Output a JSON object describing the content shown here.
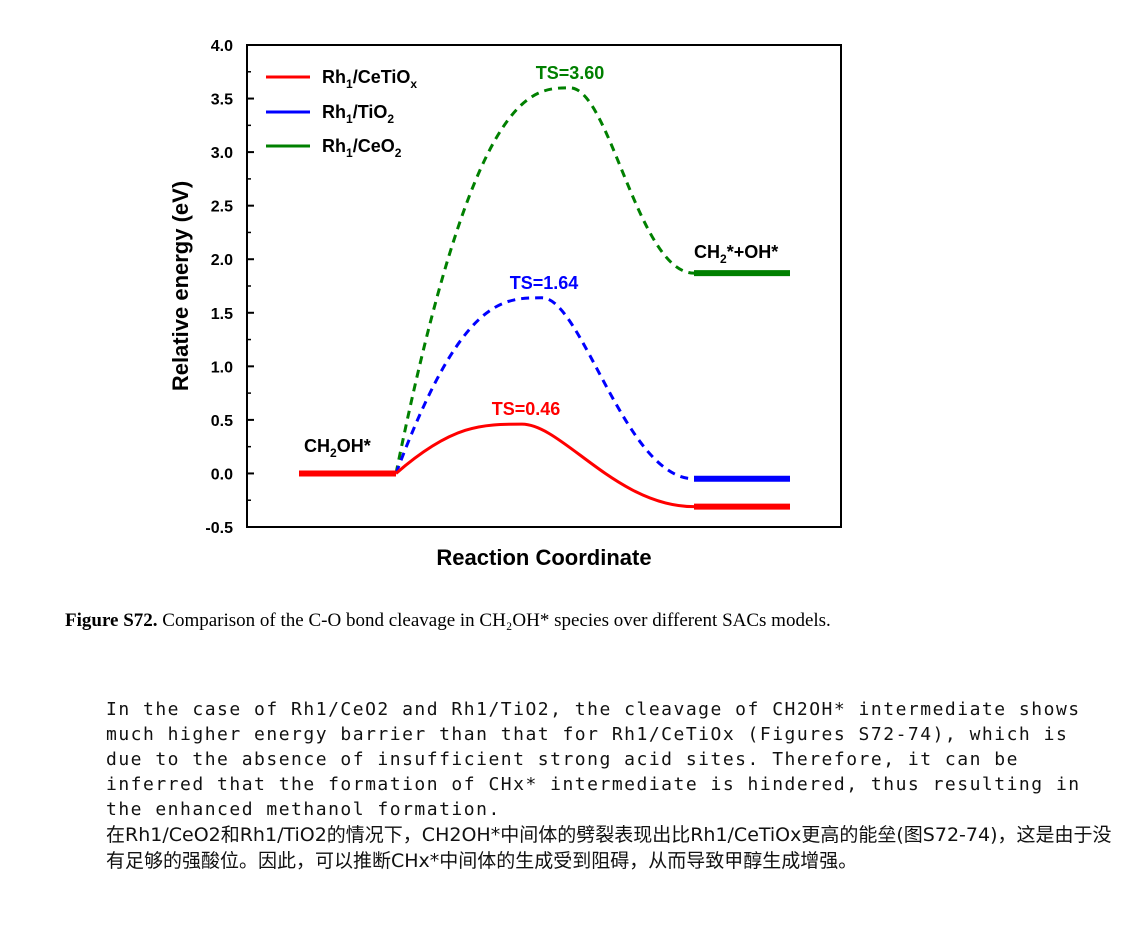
{
  "chart_data": {
    "type": "line",
    "xlabel": "Reaction Coordinate",
    "ylabel": "Relative energy (eV)",
    "ylim": [
      -0.5,
      4.0
    ],
    "ytick_labels": [
      "-0.5",
      "0.0",
      "0.5",
      "1.0",
      "1.5",
      "2.0",
      "2.5",
      "3.0",
      "3.5",
      "4.0"
    ],
    "legend_position": "top-left",
    "series": [
      {
        "name": "Rh1/CeTiOx",
        "color": "#ff0000",
        "initial": 0.0,
        "ts": 0.46,
        "final": -0.31
      },
      {
        "name": "Rh1/TiO2",
        "color": "#0000ff",
        "initial": 0.0,
        "ts": 1.64,
        "final": -0.05
      },
      {
        "name": "Rh1/CeO2",
        "color": "#008000",
        "initial": 0.0,
        "ts": 3.6,
        "final": 1.87
      }
    ],
    "annotations": {
      "initial_state": "CH2OH*",
      "final_state": "CH2*+OH*",
      "ts_red": "TS=0.46",
      "ts_blue": "TS=1.64",
      "ts_green": "TS=3.60"
    }
  },
  "caption": {
    "label": "Figure S72.",
    "text": " Comparison of the C-O bond cleavage in CH₂OH* species over different SACs models."
  },
  "paragraph_en": "In the case of Rh1/CeO2 and Rh1/TiO2, the cleavage of CH2OH* intermediate shows\nmuch higher energy barrier than that for Rh1/CeTiOx (Figures S72-74), which is\ndue to the absence of insufficient strong acid sites. Therefore, it can be\ninferred that the formation of CHx* intermediate is hindered, thus resulting in\nthe enhanced methanol formation.",
  "paragraph_zh": "在Rh1/CeO2和Rh1/TiO2的情况下，CH2OH*中间体的劈裂表现出比Rh1/CeTiOx更高的能垒(图S72-74)，这是由于没有足够的强酸位。因此，可以推断CHx*中间体的生成受到阻碍，从而导致甲醇生成增强。"
}
